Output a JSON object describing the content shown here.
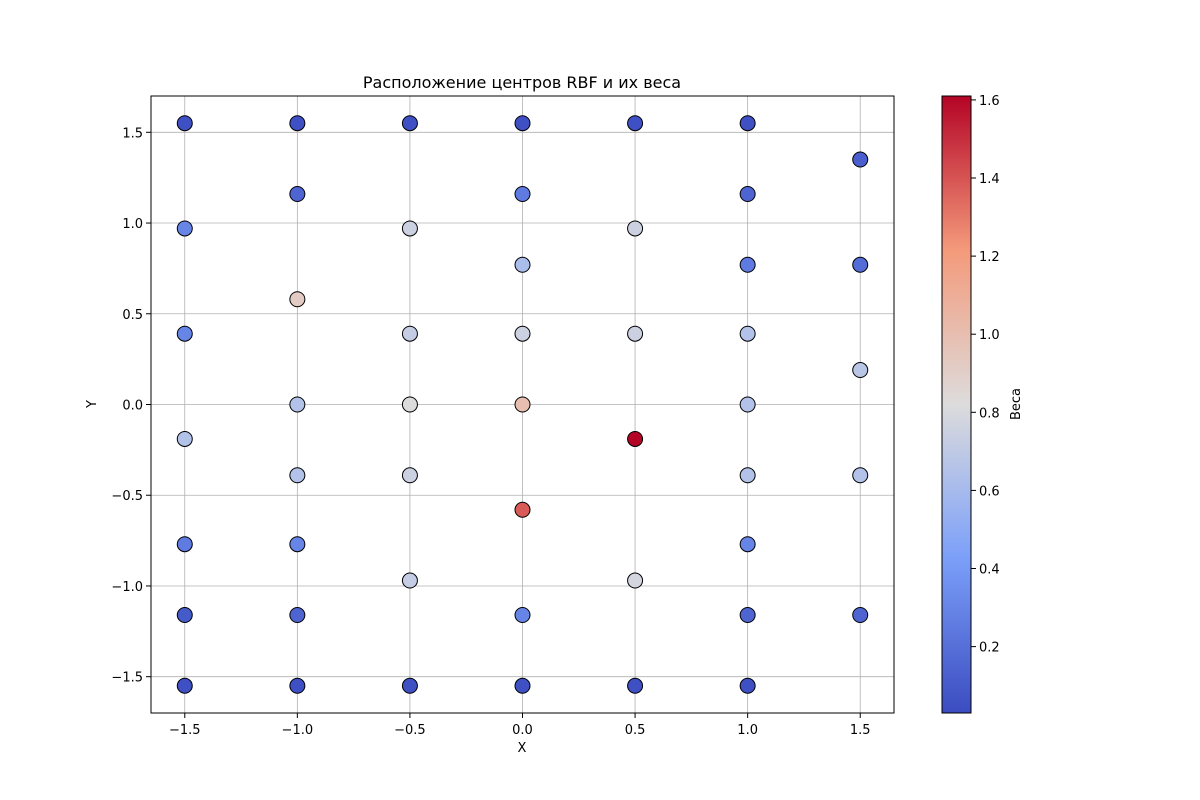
{
  "chart_data": {
    "type": "scatter",
    "title": "Расположение центров RBF и их веса",
    "xlabel": "X",
    "ylabel": "Y",
    "xlim": [
      -1.65,
      1.65
    ],
    "ylim": [
      -1.7,
      1.7
    ],
    "xticks": [
      -1.5,
      -1.0,
      -0.5,
      0.0,
      0.5,
      1.0,
      1.5
    ],
    "xtick_labels": [
      "−1.5",
      "−1.0",
      "−0.5",
      "0.0",
      "0.5",
      "1.0",
      "1.5"
    ],
    "yticks": [
      -1.5,
      -1.0,
      -0.5,
      0.0,
      0.5,
      1.0,
      1.5
    ],
    "ytick_labels": [
      "−1.5",
      "−1.0",
      "−0.5",
      "0.0",
      "0.5",
      "1.0",
      "1.5"
    ],
    "grid": true,
    "colormap": "coolwarm",
    "colorbar": {
      "label": "Веса",
      "range": [
        0.03,
        1.61
      ],
      "ticks": [
        0.2,
        0.4,
        0.6,
        0.8,
        1.0,
        1.2,
        1.4,
        1.6
      ],
      "tick_labels": [
        "0.2",
        "0.4",
        "0.6",
        "0.8",
        "1.0",
        "1.2",
        "1.4",
        "1.6"
      ]
    },
    "points": [
      {
        "x": -1.5,
        "y": 1.55,
        "w": 0.05
      },
      {
        "x": -1.0,
        "y": 1.55,
        "w": 0.05
      },
      {
        "x": -0.5,
        "y": 1.55,
        "w": 0.05
      },
      {
        "x": 0.0,
        "y": 1.55,
        "w": 0.05
      },
      {
        "x": 0.5,
        "y": 1.55,
        "w": 0.05
      },
      {
        "x": 1.0,
        "y": 1.55,
        "w": 0.05
      },
      {
        "x": 1.5,
        "y": 1.35,
        "w": 0.12
      },
      {
        "x": -1.0,
        "y": 1.16,
        "w": 0.15
      },
      {
        "x": 0.0,
        "y": 1.16,
        "w": 0.25
      },
      {
        "x": 1.0,
        "y": 1.16,
        "w": 0.15
      },
      {
        "x": -1.5,
        "y": 0.97,
        "w": 0.3
      },
      {
        "x": -0.5,
        "y": 0.97,
        "w": 0.75
      },
      {
        "x": 0.5,
        "y": 0.97,
        "w": 0.75
      },
      {
        "x": 0.0,
        "y": 0.77,
        "w": 0.62
      },
      {
        "x": 1.0,
        "y": 0.77,
        "w": 0.25
      },
      {
        "x": 1.5,
        "y": 0.77,
        "w": 0.18
      },
      {
        "x": -1.0,
        "y": 0.58,
        "w": 0.92
      },
      {
        "x": -1.5,
        "y": 0.39,
        "w": 0.3
      },
      {
        "x": -0.5,
        "y": 0.39,
        "w": 0.72
      },
      {
        "x": 0.0,
        "y": 0.39,
        "w": 0.75
      },
      {
        "x": 0.5,
        "y": 0.39,
        "w": 0.75
      },
      {
        "x": 1.0,
        "y": 0.39,
        "w": 0.65
      },
      {
        "x": 1.5,
        "y": 0.19,
        "w": 0.68
      },
      {
        "x": -1.0,
        "y": 0.0,
        "w": 0.65
      },
      {
        "x": -0.5,
        "y": 0.0,
        "w": 0.82
      },
      {
        "x": 0.0,
        "y": 0.0,
        "w": 1.0
      },
      {
        "x": 1.0,
        "y": 0.0,
        "w": 0.65
      },
      {
        "x": -1.5,
        "y": -0.19,
        "w": 0.65
      },
      {
        "x": 0.5,
        "y": -0.19,
        "w": 1.61
      },
      {
        "x": -1.0,
        "y": -0.39,
        "w": 0.65
      },
      {
        "x": -0.5,
        "y": -0.39,
        "w": 0.75
      },
      {
        "x": 1.0,
        "y": -0.39,
        "w": 0.65
      },
      {
        "x": 1.5,
        "y": -0.39,
        "w": 0.65
      },
      {
        "x": 0.0,
        "y": -0.58,
        "w": 1.38
      },
      {
        "x": -1.5,
        "y": -0.77,
        "w": 0.25
      },
      {
        "x": -1.0,
        "y": -0.77,
        "w": 0.3
      },
      {
        "x": 1.0,
        "y": -0.77,
        "w": 0.3
      },
      {
        "x": -0.5,
        "y": -0.97,
        "w": 0.72
      },
      {
        "x": 0.5,
        "y": -0.97,
        "w": 0.78
      },
      {
        "x": -1.5,
        "y": -1.16,
        "w": 0.1
      },
      {
        "x": -1.0,
        "y": -1.16,
        "w": 0.15
      },
      {
        "x": 0.0,
        "y": -1.16,
        "w": 0.3
      },
      {
        "x": 1.0,
        "y": -1.16,
        "w": 0.15
      },
      {
        "x": 1.5,
        "y": -1.16,
        "w": 0.15
      },
      {
        "x": -1.5,
        "y": -1.55,
        "w": 0.05
      },
      {
        "x": -1.0,
        "y": -1.55,
        "w": 0.05
      },
      {
        "x": -0.5,
        "y": -1.55,
        "w": 0.05
      },
      {
        "x": 0.0,
        "y": -1.55,
        "w": 0.05
      },
      {
        "x": 0.5,
        "y": -1.55,
        "w": 0.05
      },
      {
        "x": 1.0,
        "y": -1.55,
        "w": 0.05
      }
    ]
  }
}
